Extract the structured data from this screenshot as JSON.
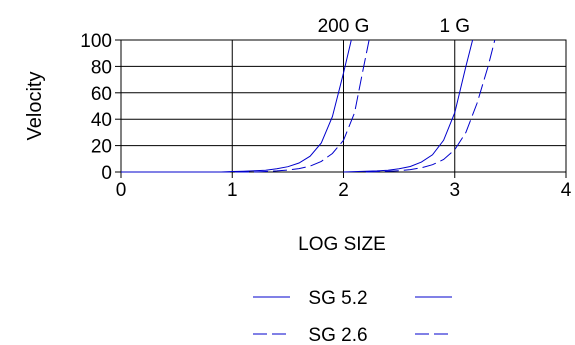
{
  "chart_data": {
    "type": "line",
    "xlabel": "LOG SIZE",
    "ylabel": "Velocity",
    "xlim": [
      0,
      4
    ],
    "ylim": [
      0,
      100
    ],
    "xticks": [
      "0",
      "1",
      "2",
      "3",
      "4"
    ],
    "yticks": [
      "0",
      "20",
      "40",
      "60",
      "80",
      "100"
    ],
    "grid": true,
    "legend_position": "bottom",
    "annotations": [
      {
        "text": "200 G",
        "x": 2
      },
      {
        "text": "1 G",
        "x": 3
      }
    ],
    "series": [
      {
        "name": "SG 5.2",
        "style": "solid",
        "color": "#0000cc",
        "x": [
          0,
          0.9,
          1.0,
          1.1,
          1.2,
          1.3,
          1.4,
          1.5,
          1.6,
          1.7,
          1.8,
          1.9,
          2.0,
          2.07
        ],
        "y": [
          0,
          0,
          0.4,
          0.6,
          0.9,
          1.4,
          2.4,
          4.0,
          6.8,
          12.0,
          22.0,
          42.0,
          75.0,
          100
        ]
      },
      {
        "name": "SG 2.6",
        "style": "dashed",
        "color": "#0000cc",
        "x": [
          0,
          1.2,
          1.3,
          1.4,
          1.5,
          1.6,
          1.7,
          1.8,
          1.9,
          2.0,
          2.1,
          2.17,
          2.23
        ],
        "y": [
          0,
          0,
          0.4,
          0.8,
          1.5,
          2.6,
          4.5,
          8.0,
          14.0,
          24.0,
          45.0,
          75.0,
          100
        ]
      },
      {
        "name": "SG 5.2",
        "style": "solid",
        "color": "#0000cc",
        "x": [
          2.0,
          2.1,
          2.2,
          2.3,
          2.4,
          2.5,
          2.6,
          2.7,
          2.8,
          2.9,
          3.0,
          3.1,
          3.16
        ],
        "y": [
          0,
          0.3,
          0.5,
          0.8,
          1.4,
          2.4,
          4.2,
          7.5,
          13.0,
          24.0,
          45.0,
          80.0,
          100
        ]
      },
      {
        "name": "SG 2.6",
        "style": "dashed",
        "color": "#0000cc",
        "x": [
          2.2,
          2.3,
          2.4,
          2.5,
          2.6,
          2.7,
          2.8,
          2.9,
          3.0,
          3.1,
          3.2,
          3.3,
          3.36
        ],
        "y": [
          0,
          0.3,
          0.6,
          1.0,
          1.8,
          3.2,
          5.5,
          9.5,
          17.0,
          30.0,
          52.0,
          80.0,
          100
        ]
      }
    ],
    "legend": [
      {
        "label": "SG 5.2",
        "style": "solid"
      },
      {
        "label": "SG 2.6",
        "style": "dashed"
      }
    ]
  }
}
